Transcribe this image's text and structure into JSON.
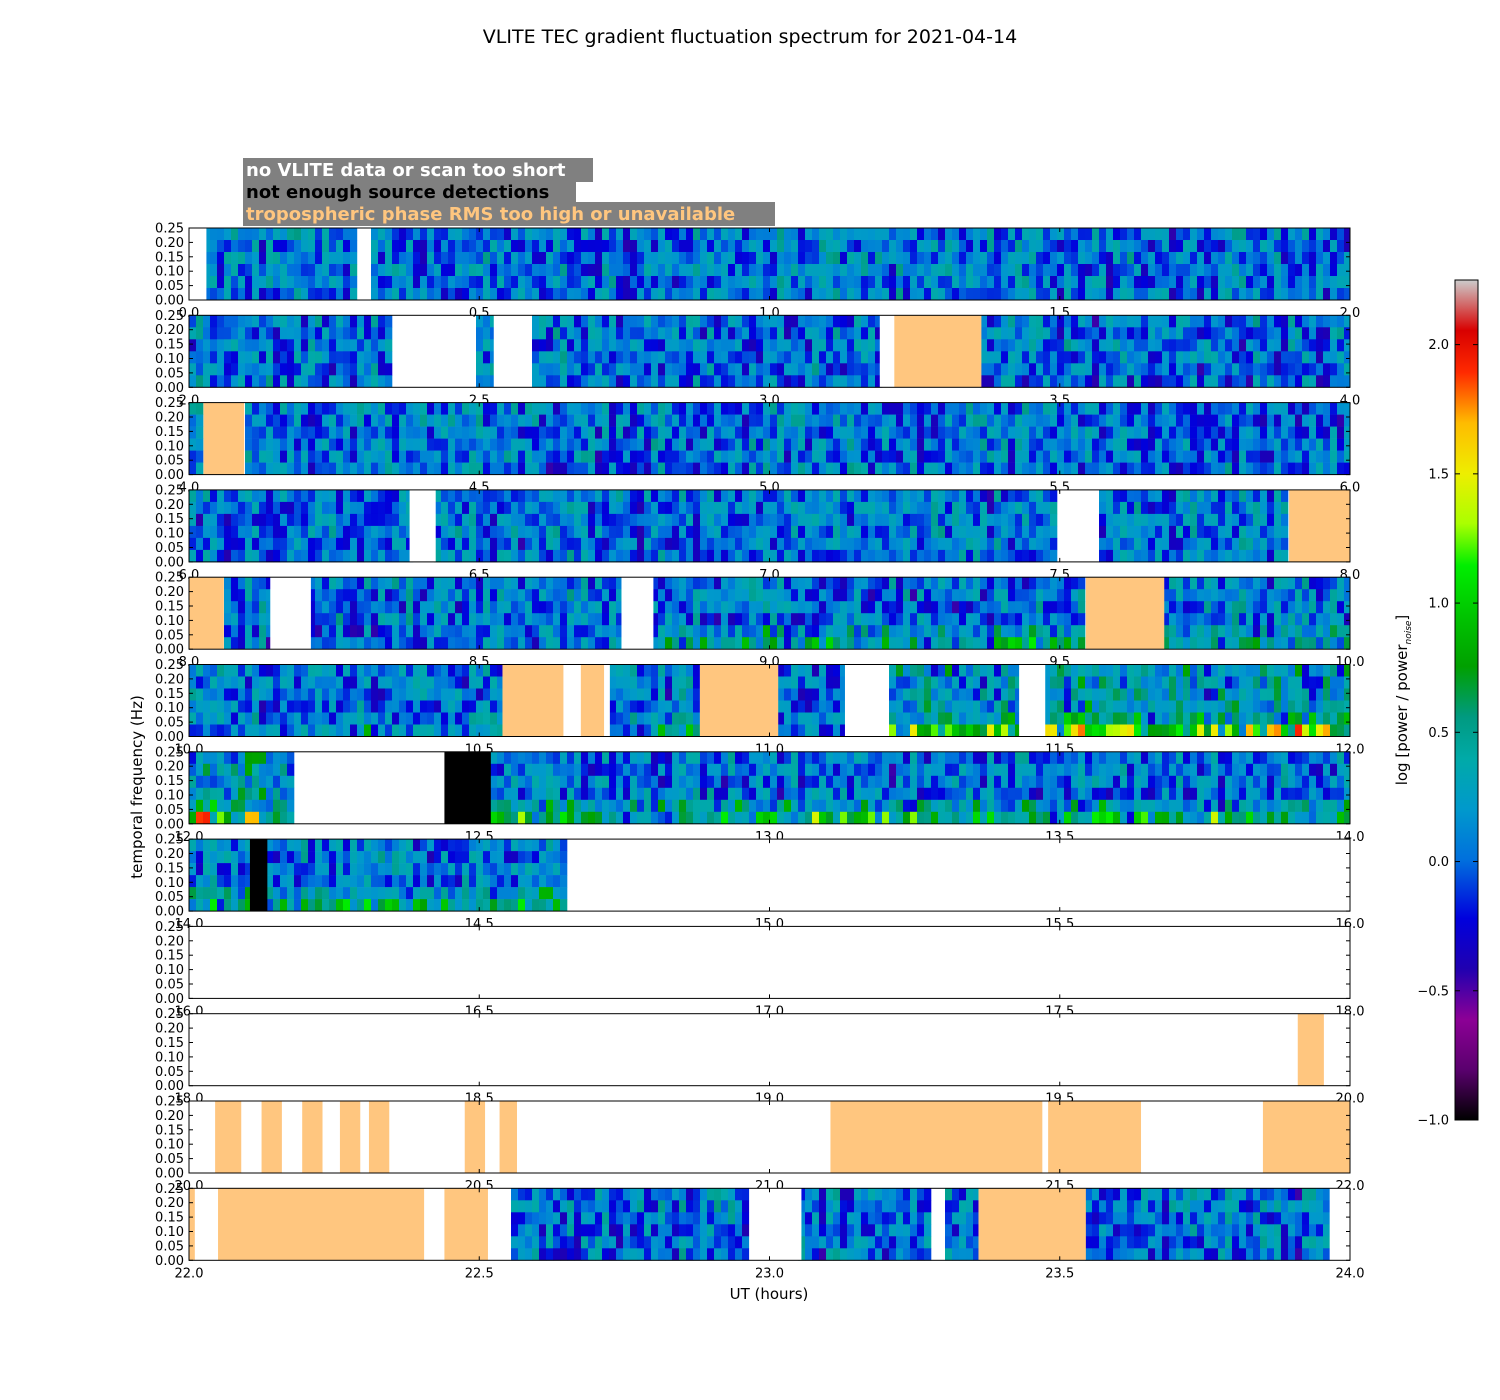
{
  "chart_data": {
    "type": "heatmap",
    "title": "VLITE TEC gradient fluctuation spectrum for 2021-04-14",
    "xlabel": "UT (hours)",
    "ylabel": "temporal frequency (Hz)",
    "colorbar_label": "log [power / power",
    "colorbar_label_sub": "noise",
    "colorbar_label_close": "]",
    "colorbar_range": [
      -1.0,
      2.25
    ],
    "colorbar_ticks": [
      "2.0",
      "1.5",
      "1.0",
      "0.5",
      "0.0",
      "−0.5",
      "−1.0"
    ],
    "colorbar_tick_values": [
      2.0,
      1.5,
      1.0,
      0.5,
      0.0,
      -0.5,
      -1.0
    ],
    "colormap": "nipy_spectral",
    "ylim": [
      0,
      0.25
    ],
    "yticks": [
      "0.00",
      "0.05",
      "0.10",
      "0.15",
      "0.20",
      "0.25"
    ],
    "ytick_values": [
      0.0,
      0.05,
      0.1,
      0.15,
      0.2,
      0.25
    ],
    "legend": [
      {
        "label": "no VLITE data or scan too short",
        "color": "#ffffff"
      },
      {
        "label": "not enough source detections",
        "color": "#000000"
      },
      {
        "label": "tropospheric phase RMS too high or unavailable",
        "color": "#ffc67f"
      }
    ],
    "legend_background": "#808080",
    "panels": [
      {
        "xlim": [
          0,
          2
        ],
        "xticks": [
          "0.0",
          "0.5",
          "1.0",
          "1.5",
          "2.0"
        ],
        "white": [
          [
            0,
            0.03
          ],
          [
            0.29,
            0.31
          ]
        ],
        "black": [],
        "orange": [],
        "hot": []
      },
      {
        "xlim": [
          2,
          4
        ],
        "xticks": [
          "2.0",
          "2.5",
          "3.0",
          "3.5",
          "4.0"
        ],
        "white": [
          [
            2.355,
            2.49
          ],
          [
            2.525,
            2.585
          ],
          [
            3.19,
            3.215
          ]
        ],
        "black": [],
        "orange": [
          [
            3.215,
            3.365
          ]
        ],
        "hot": []
      },
      {
        "xlim": [
          4,
          6
        ],
        "xticks": [
          "4.0",
          "4.5",
          "5.0",
          "5.5",
          "6.0"
        ],
        "white": [],
        "black": [],
        "orange": [
          [
            4.025,
            4.095
          ]
        ],
        "hot": []
      },
      {
        "xlim": [
          6,
          8
        ],
        "xticks": [
          "6.0",
          "6.5",
          "7.0",
          "7.5",
          "8.0"
        ],
        "white": [
          [
            6.38,
            6.425
          ],
          [
            7.5,
            7.565
          ]
        ],
        "black": [],
        "orange": [
          [
            7.895,
            8.0
          ]
        ],
        "hot": []
      },
      {
        "xlim": [
          8,
          10
        ],
        "xticks": [
          "8.0",
          "8.5",
          "9.0",
          "9.5",
          "10.0"
        ],
        "white": [
          [
            8.14,
            8.21
          ],
          [
            8.745,
            8.8
          ]
        ],
        "black": [],
        "orange": [
          [
            8.0,
            8.06
          ],
          [
            9.545,
            9.68
          ]
        ],
        "hot": [
          [
            8.81,
            9.545,
            0.35
          ],
          [
            9.68,
            10.0,
            0.35
          ]
        ]
      },
      {
        "xlim": [
          10,
          12
        ],
        "xticks": [
          "10.0",
          "10.5",
          "11.0",
          "11.5",
          "12.0"
        ],
        "white": [
          [
            10.645,
            10.675
          ],
          [
            10.715,
            10.725
          ],
          [
            11.13,
            11.2
          ],
          [
            11.43,
            11.475
          ]
        ],
        "black": [],
        "orange": [
          [
            10.54,
            10.645
          ],
          [
            10.675,
            10.715
          ],
          [
            10.88,
            11.015
          ]
        ],
        "hot": [
          [
            10.3,
            10.54,
            0.2
          ],
          [
            10.8,
            10.88,
            0.4
          ],
          [
            11.2,
            11.43,
            0.6
          ],
          [
            11.475,
            12.0,
            0.8
          ]
        ]
      },
      {
        "xlim": [
          12,
          14
        ],
        "xticks": [
          "12.0",
          "12.5",
          "13.0",
          "13.5",
          "14.0"
        ],
        "white": [
          [
            12.185,
            12.44
          ]
        ],
        "black": [
          [
            12.44,
            12.52
          ]
        ],
        "orange": [],
        "hot": [
          [
            12.0,
            12.185,
            0.7
          ],
          [
            12.52,
            14.0,
            0.45
          ]
        ]
      },
      {
        "xlim": [
          14,
          16
        ],
        "xticks": [
          "14.0",
          "14.5",
          "15.0",
          "15.5",
          "16.0"
        ],
        "white": [
          [
            14.655,
            16.0
          ]
        ],
        "black": [
          [
            14.105,
            14.135
          ]
        ],
        "orange": [],
        "hot": [
          [
            14.0,
            14.655,
            0.4
          ]
        ]
      },
      {
        "xlim": [
          16,
          18
        ],
        "xticks": [
          "16.0",
          "16.5",
          "17.0",
          "17.5",
          "18.0"
        ],
        "white": [
          [
            16.0,
            18.0
          ]
        ],
        "black": [],
        "orange": [],
        "hot": []
      },
      {
        "xlim": [
          18,
          20
        ],
        "xticks": [
          "18.0",
          "18.5",
          "19.0",
          "19.5",
          "20.0"
        ],
        "white": [
          [
            18.0,
            19.91
          ],
          [
            19.955,
            20.0
          ]
        ],
        "black": [],
        "orange": [
          [
            19.91,
            19.955
          ]
        ],
        "hot": []
      },
      {
        "xlim": [
          20,
          22
        ],
        "xticks": [
          "20.0",
          "20.5",
          "21.0",
          "21.5",
          "22.0"
        ],
        "white": [
          [
            20.0,
            20.045
          ],
          [
            20.09,
            20.125
          ],
          [
            20.16,
            20.195
          ],
          [
            20.23,
            20.26
          ],
          [
            20.295,
            20.31
          ],
          [
            20.345,
            20.475
          ],
          [
            20.51,
            20.535
          ],
          [
            20.565,
            21.105
          ],
          [
            21.47,
            21.48
          ],
          [
            21.64,
            21.85
          ]
        ],
        "black": [],
        "orange": [
          [
            20.045,
            20.09
          ],
          [
            20.125,
            20.16
          ],
          [
            20.195,
            20.23
          ],
          [
            20.26,
            20.295
          ],
          [
            20.31,
            20.345
          ],
          [
            20.475,
            20.51
          ],
          [
            20.535,
            20.565
          ],
          [
            21.105,
            21.47
          ],
          [
            21.48,
            21.64
          ],
          [
            21.85,
            22.0
          ]
        ],
        "hot": []
      },
      {
        "xlim": [
          22,
          24
        ],
        "xticks": [
          "22.0",
          "22.5",
          "23.0",
          "23.5",
          "24.0"
        ],
        "white": [
          [
            22.01,
            22.05
          ],
          [
            22.405,
            22.44
          ],
          [
            22.515,
            22.55
          ],
          [
            22.965,
            23.055
          ],
          [
            23.28,
            23.3
          ],
          [
            23.36,
            23.36
          ],
          [
            23.965,
            24.0
          ]
        ],
        "black": [],
        "orange": [
          [
            22.0,
            22.01
          ],
          [
            22.05,
            22.405
          ],
          [
            22.44,
            22.515
          ],
          [
            23.36,
            23.545
          ]
        ],
        "hot": []
      }
    ]
  }
}
